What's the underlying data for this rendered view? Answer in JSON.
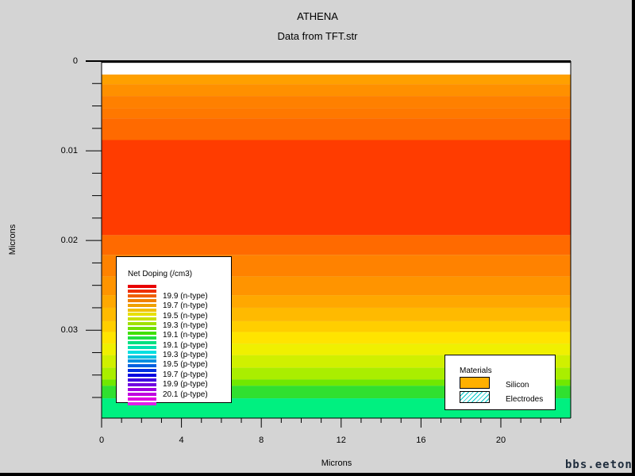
{
  "app_title": "ATHENA",
  "watermark": "bbs.eeton.cn",
  "chart_data": {
    "type": "heatmap",
    "title": "Data from TFT.str",
    "xlabel": "Microns",
    "ylabel": "Microns",
    "xlim": [
      0,
      23.5
    ],
    "ylim": [
      0,
      0.0398
    ],
    "y_inverted": true,
    "x_ticks": [
      0,
      4,
      8,
      12,
      16,
      20
    ],
    "y_ticks": [
      0,
      0.01,
      0.02,
      0.03
    ],
    "x_tick_labels": [
      "0",
      "4",
      "8",
      "12",
      "16",
      "20"
    ],
    "y_tick_labels": [
      "0",
      "0.01",
      "0.02",
      "0.03"
    ],
    "colors": {
      "electrode": "#ffffff",
      "frame": "#d4d4d4",
      "border": "#000000"
    },
    "layers": [
      {
        "y0": 0.0,
        "y1": 0.0002,
        "color": "#000000",
        "material": "interface"
      },
      {
        "y0": 0.0002,
        "y1": 0.0015,
        "color": "#ffffff",
        "material": "Electrodes"
      },
      {
        "y0": 0.0015,
        "y1": 0.0026,
        "color": "#ffa000"
      },
      {
        "y0": 0.0026,
        "y1": 0.0039,
        "color": "#ff9000"
      },
      {
        "y0": 0.0039,
        "y1": 0.0053,
        "color": "#ff8000"
      },
      {
        "y0": 0.0053,
        "y1": 0.0064,
        "color": "#ff7800"
      },
      {
        "y0": 0.0064,
        "y1": 0.0088,
        "color": "#ff6a00"
      },
      {
        "y0": 0.0088,
        "y1": 0.0194,
        "color": "#ff3c00"
      },
      {
        "y0": 0.0194,
        "y1": 0.0216,
        "color": "#ff6a00"
      },
      {
        "y0": 0.0216,
        "y1": 0.024,
        "color": "#ff8200"
      },
      {
        "y0": 0.024,
        "y1": 0.0261,
        "color": "#ff9400"
      },
      {
        "y0": 0.0261,
        "y1": 0.0275,
        "color": "#ffa800"
      },
      {
        "y0": 0.0275,
        "y1": 0.029,
        "color": "#ffba00"
      },
      {
        "y0": 0.029,
        "y1": 0.0302,
        "color": "#ffce00"
      },
      {
        "y0": 0.0302,
        "y1": 0.0315,
        "color": "#ffe400"
      },
      {
        "y0": 0.0315,
        "y1": 0.0328,
        "color": "#f0f000"
      },
      {
        "y0": 0.0328,
        "y1": 0.0342,
        "color": "#d0f000"
      },
      {
        "y0": 0.0342,
        "y1": 0.0355,
        "color": "#aaee00"
      },
      {
        "y0": 0.0355,
        "y1": 0.0362,
        "color": "#70e800"
      },
      {
        "y0": 0.0362,
        "y1": 0.0376,
        "color": "#30e030"
      },
      {
        "y0": 0.0376,
        "y1": 0.0398,
        "color": "#00f080"
      }
    ],
    "legend": {
      "title": "Net Doping (/cm3)",
      "swatches": [
        "#e80000",
        "#ee3000",
        "#f06000",
        "#f08000",
        "#f0a000",
        "#f0c000",
        "#e8e000",
        "#c8e000",
        "#a0e000",
        "#70e000",
        "#40e000",
        "#20e040",
        "#00e080",
        "#00e0b0",
        "#00e0e0",
        "#00c0e0",
        "#0090e0",
        "#0060e0",
        "#0030e0",
        "#0000e0",
        "#4000e0",
        "#7000e0",
        "#a000e0",
        "#c000e0",
        "#e000e0",
        "#e020e8"
      ],
      "labels": [
        "19.9 (n-type)",
        "19.7 (n-type)",
        "19.5 (n-type)",
        "19.3 (n-type)",
        "19.1 (n-type)",
        "19.1 (p-type)",
        "19.3 (p-type)",
        "19.5 (p-type)",
        "19.7 (p-type)",
        "19.9 (p-type)",
        "20.1 (p-type)"
      ]
    },
    "materials_legend": {
      "title": "Materials",
      "items": [
        {
          "label": "Silicon",
          "color": "#ffb000",
          "pattern": "solid"
        },
        {
          "label": "Electrodes",
          "color": "#00c8c8",
          "pattern": "hatch"
        }
      ]
    }
  }
}
